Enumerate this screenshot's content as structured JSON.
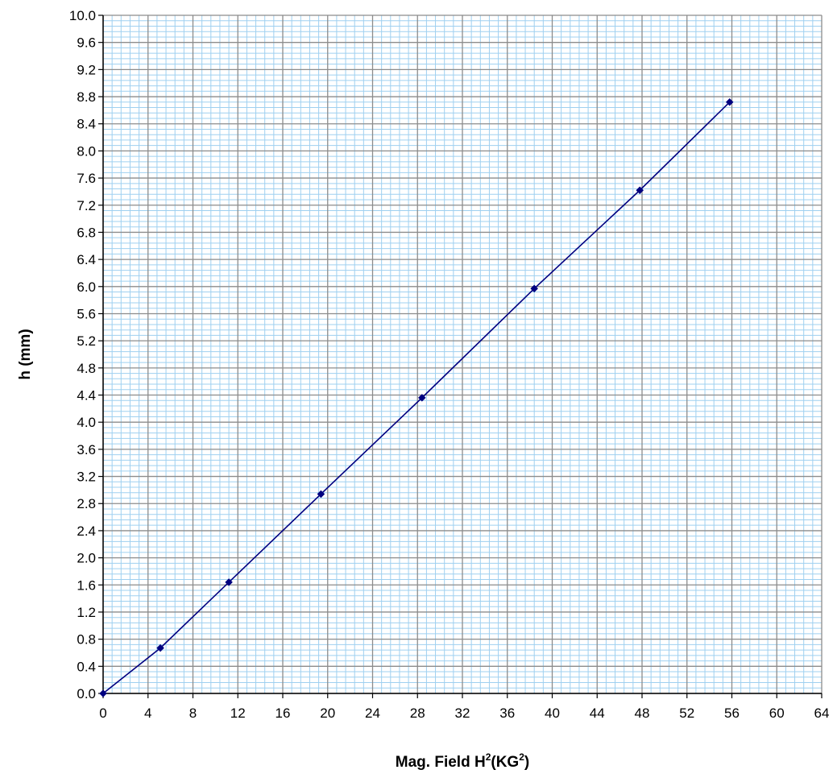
{
  "chart_data": {
    "type": "scatter",
    "xlabel": "Mag. Field H²(KG²)",
    "xlabel_parts": {
      "prefix": "Mag. Field H",
      "sup1": "2",
      "middle": "(KG",
      "sup2": "2",
      "suffix": ")"
    },
    "ylabel": "h (mm)",
    "xlim": [
      0,
      64
    ],
    "ylim": [
      0,
      10
    ],
    "x_major_step": 4,
    "y_major_step": 0.4,
    "x_ticks": [
      "0",
      "4",
      "8",
      "12",
      "16",
      "20",
      "24",
      "28",
      "32",
      "36",
      "40",
      "44",
      "48",
      "52",
      "56",
      "60",
      "64"
    ],
    "y_ticks": [
      "0.0",
      "0.4",
      "0.8",
      "1.2",
      "1.6",
      "2.0",
      "2.4",
      "2.8",
      "3.2",
      "3.6",
      "4.0",
      "4.4",
      "4.8",
      "5.2",
      "5.6",
      "6.0",
      "6.4",
      "6.8",
      "7.2",
      "7.6",
      "8.0",
      "8.4",
      "8.8",
      "9.2",
      "9.6",
      "10.0"
    ],
    "grid": true,
    "connected": true,
    "series": [
      {
        "x": [
          0,
          5.1,
          11.2,
          19.4,
          28.4,
          38.4,
          47.8,
          55.8
        ],
        "y": [
          0,
          0.67,
          1.64,
          2.94,
          4.36,
          5.97,
          7.42,
          8.72
        ]
      }
    ]
  },
  "colors": {
    "background": "#ffffff",
    "minor_grid": "#9fd0f0",
    "major_grid": "#8c8c8c",
    "axis": "#000000",
    "series": "#000080"
  }
}
